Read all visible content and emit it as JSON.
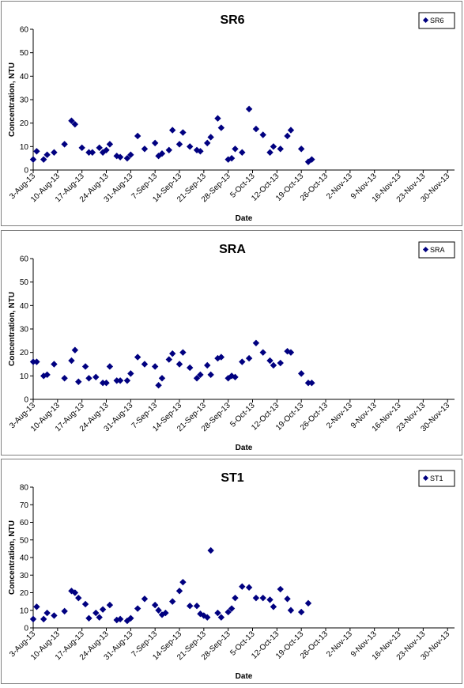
{
  "chart_data": [
    {
      "type": "scatter",
      "title": "SR6",
      "xlabel": "Date",
      "ylabel": "Concentration, NTU",
      "ylim": [
        0,
        60
      ],
      "yticks": [
        0,
        10,
        20,
        30,
        40,
        50,
        60
      ],
      "xlim": [
        "2013-08-03",
        "2013-12-02"
      ],
      "x_tick_labels": [
        "3-Aug-13",
        "10-Aug-13",
        "17-Aug-13",
        "24-Aug-13",
        "31-Aug-13",
        "7-Sep-13",
        "14-Sep-13",
        "21-Sep-13",
        "28-Sep-13",
        "5-Oct-13",
        "12-Oct-13",
        "19-Oct-13",
        "26-Oct-13",
        "2-Nov-13",
        "9-Nov-13",
        "16-Nov-13",
        "23-Nov-13",
        "30-Nov-13"
      ],
      "legend": "top-right",
      "marker_color": "#000080",
      "series": [
        {
          "name": "SR6",
          "points": [
            [
              "2013-08-03",
              4.5
            ],
            [
              "2013-08-04",
              8
            ],
            [
              "2013-08-06",
              4.5
            ],
            [
              "2013-08-07",
              6.5
            ],
            [
              "2013-08-09",
              7.5
            ],
            [
              "2013-08-12",
              11
            ],
            [
              "2013-08-14",
              21
            ],
            [
              "2013-08-15",
              19.5
            ],
            [
              "2013-08-17",
              9.5
            ],
            [
              "2013-08-19",
              7.5
            ],
            [
              "2013-08-20",
              7.5
            ],
            [
              "2013-08-22",
              9.5
            ],
            [
              "2013-08-23",
              7.5
            ],
            [
              "2013-08-24",
              8.5
            ],
            [
              "2013-08-25",
              11
            ],
            [
              "2013-08-27",
              6
            ],
            [
              "2013-08-28",
              5.5
            ],
            [
              "2013-08-30",
              5
            ],
            [
              "2013-08-31",
              6.5
            ],
            [
              "2013-09-02",
              14.5
            ],
            [
              "2013-09-04",
              9
            ],
            [
              "2013-09-07",
              11.5
            ],
            [
              "2013-09-08",
              6
            ],
            [
              "2013-09-09",
              7
            ],
            [
              "2013-09-11",
              8.5
            ],
            [
              "2013-09-12",
              17
            ],
            [
              "2013-09-14",
              11
            ],
            [
              "2013-09-15",
              16
            ],
            [
              "2013-09-17",
              10
            ],
            [
              "2013-09-19",
              8.5
            ],
            [
              "2013-09-20",
              8
            ],
            [
              "2013-09-22",
              11.5
            ],
            [
              "2013-09-23",
              14
            ],
            [
              "2013-09-25",
              22
            ],
            [
              "2013-09-26",
              18
            ],
            [
              "2013-09-28",
              4.5
            ],
            [
              "2013-09-29",
              5
            ],
            [
              "2013-09-30",
              9
            ],
            [
              "2013-10-02",
              7.5
            ],
            [
              "2013-10-04",
              26
            ],
            [
              "2013-10-06",
              17.5
            ],
            [
              "2013-10-08",
              15
            ],
            [
              "2013-10-10",
              7.5
            ],
            [
              "2013-10-11",
              10
            ],
            [
              "2013-10-13",
              9
            ],
            [
              "2013-10-15",
              14.5
            ],
            [
              "2013-10-16",
              17
            ],
            [
              "2013-10-19",
              9
            ],
            [
              "2013-10-21",
              3.5
            ],
            [
              "2013-10-22",
              4.5
            ]
          ]
        }
      ]
    },
    {
      "type": "scatter",
      "title": "SRA",
      "xlabel": "Date",
      "ylabel": "Concentration, NTU",
      "ylim": [
        0,
        60
      ],
      "yticks": [
        0,
        10,
        20,
        30,
        40,
        50,
        60
      ],
      "xlim": [
        "2013-08-03",
        "2013-12-02"
      ],
      "x_tick_labels": [
        "3-Aug-13",
        "10-Aug-13",
        "17-Aug-13",
        "24-Aug-13",
        "31-Aug-13",
        "7-Sep-13",
        "14-Sep-13",
        "21-Sep-13",
        "28-Sep-13",
        "5-Oct-13",
        "12-Oct-13",
        "19-Oct-13",
        "26-Oct-13",
        "2-Nov-13",
        "9-Nov-13",
        "16-Nov-13",
        "23-Nov-13",
        "30-Nov-13"
      ],
      "legend": "top-right",
      "marker_color": "#000080",
      "series": [
        {
          "name": "SRA",
          "points": [
            [
              "2013-08-03",
              16
            ],
            [
              "2013-08-04",
              16
            ],
            [
              "2013-08-06",
              10
            ],
            [
              "2013-08-07",
              10.5
            ],
            [
              "2013-08-09",
              15
            ],
            [
              "2013-08-12",
              9
            ],
            [
              "2013-08-14",
              16.5
            ],
            [
              "2013-08-15",
              21
            ],
            [
              "2013-08-16",
              7.5
            ],
            [
              "2013-08-18",
              14
            ],
            [
              "2013-08-19",
              9
            ],
            [
              "2013-08-21",
              9.5
            ],
            [
              "2013-08-23",
              7
            ],
            [
              "2013-08-24",
              7
            ],
            [
              "2013-08-25",
              14
            ],
            [
              "2013-08-27",
              8
            ],
            [
              "2013-08-28",
              8
            ],
            [
              "2013-08-30",
              8
            ],
            [
              "2013-08-31",
              11
            ],
            [
              "2013-09-02",
              18
            ],
            [
              "2013-09-04",
              15
            ],
            [
              "2013-09-07",
              14
            ],
            [
              "2013-09-08",
              6
            ],
            [
              "2013-09-09",
              9
            ],
            [
              "2013-09-11",
              17
            ],
            [
              "2013-09-12",
              19.5
            ],
            [
              "2013-09-14",
              15
            ],
            [
              "2013-09-15",
              20
            ],
            [
              "2013-09-17",
              13.5
            ],
            [
              "2013-09-19",
              9
            ],
            [
              "2013-09-20",
              10.5
            ],
            [
              "2013-09-22",
              14.5
            ],
            [
              "2013-09-23",
              10.5
            ],
            [
              "2013-09-25",
              17.5
            ],
            [
              "2013-09-26",
              18
            ],
            [
              "2013-09-28",
              9
            ],
            [
              "2013-09-29",
              10
            ],
            [
              "2013-09-30",
              9.5
            ],
            [
              "2013-10-02",
              16
            ],
            [
              "2013-10-04",
              17.5
            ],
            [
              "2013-10-06",
              24
            ],
            [
              "2013-10-08",
              20
            ],
            [
              "2013-10-10",
              16.5
            ],
            [
              "2013-10-11",
              14.5
            ],
            [
              "2013-10-13",
              15.5
            ],
            [
              "2013-10-15",
              20.5
            ],
            [
              "2013-10-16",
              20
            ],
            [
              "2013-10-19",
              11
            ],
            [
              "2013-10-21",
              7
            ],
            [
              "2013-10-22",
              7
            ]
          ]
        }
      ]
    },
    {
      "type": "scatter",
      "title": "ST1",
      "xlabel": "Date",
      "ylabel": "Concentration, NTU",
      "ylim": [
        0,
        80
      ],
      "yticks": [
        0,
        10,
        20,
        30,
        40,
        50,
        60,
        70,
        80
      ],
      "xlim": [
        "2013-08-03",
        "2013-12-02"
      ],
      "x_tick_labels": [
        "3-Aug-13",
        "10-Aug-13",
        "17-Aug-13",
        "24-Aug-13",
        "31-Aug-13",
        "7-Sep-13",
        "14-Sep-13",
        "21-Sep-13",
        "28-Sep-13",
        "5-Oct-13",
        "12-Oct-13",
        "19-Oct-13",
        "26-Oct-13",
        "2-Nov-13",
        "9-Nov-13",
        "16-Nov-13",
        "23-Nov-13",
        "30-Nov-13"
      ],
      "legend": "top-right",
      "marker_color": "#000080",
      "series": [
        {
          "name": "ST1",
          "points": [
            [
              "2013-08-03",
              5
            ],
            [
              "2013-08-04",
              12
            ],
            [
              "2013-08-06",
              5
            ],
            [
              "2013-08-07",
              8.5
            ],
            [
              "2013-08-09",
              7
            ],
            [
              "2013-08-12",
              9.5
            ],
            [
              "2013-08-14",
              21
            ],
            [
              "2013-08-15",
              20
            ],
            [
              "2013-08-16",
              17
            ],
            [
              "2013-08-18",
              13.5
            ],
            [
              "2013-08-19",
              5.5
            ],
            [
              "2013-08-21",
              8.5
            ],
            [
              "2013-08-22",
              6
            ],
            [
              "2013-08-23",
              10.5
            ],
            [
              "2013-08-25",
              13
            ],
            [
              "2013-08-27",
              4.5
            ],
            [
              "2013-08-28",
              5
            ],
            [
              "2013-08-30",
              4
            ],
            [
              "2013-08-31",
              5.5
            ],
            [
              "2013-09-02",
              11
            ],
            [
              "2013-09-04",
              16.5
            ],
            [
              "2013-09-07",
              13
            ],
            [
              "2013-09-08",
              10
            ],
            [
              "2013-09-09",
              7.5
            ],
            [
              "2013-09-10",
              8.5
            ],
            [
              "2013-09-12",
              15
            ],
            [
              "2013-09-14",
              21
            ],
            [
              "2013-09-15",
              26
            ],
            [
              "2013-09-17",
              12.5
            ],
            [
              "2013-09-19",
              12.5
            ],
            [
              "2013-09-20",
              8
            ],
            [
              "2013-09-21",
              7
            ],
            [
              "2013-09-22",
              6
            ],
            [
              "2013-09-23",
              44
            ],
            [
              "2013-09-25",
              8.5
            ],
            [
              "2013-09-26",
              6
            ],
            [
              "2013-09-28",
              9
            ],
            [
              "2013-09-29",
              11
            ],
            [
              "2013-09-30",
              17
            ],
            [
              "2013-10-02",
              23.5
            ],
            [
              "2013-10-04",
              23
            ],
            [
              "2013-10-06",
              17
            ],
            [
              "2013-10-08",
              17
            ],
            [
              "2013-10-10",
              16
            ],
            [
              "2013-10-11",
              12
            ],
            [
              "2013-10-13",
              22
            ],
            [
              "2013-10-15",
              16.5
            ],
            [
              "2013-10-16",
              10
            ],
            [
              "2013-10-19",
              9
            ],
            [
              "2013-10-21",
              14
            ]
          ]
        }
      ]
    }
  ]
}
